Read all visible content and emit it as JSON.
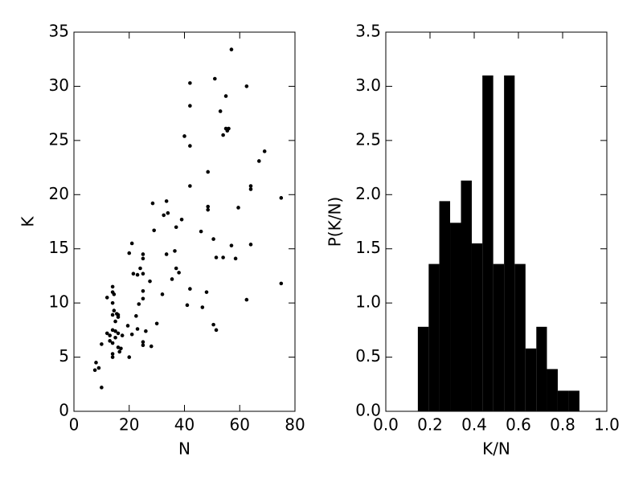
{
  "chart_data": [
    {
      "type": "scatter",
      "xlabel": "N",
      "ylabel": "K",
      "color": "#000000",
      "x": [
        8,
        7.6,
        9,
        10,
        10,
        12,
        12,
        13,
        13,
        14,
        14,
        14,
        14,
        14,
        14,
        14,
        14,
        14.5,
        14.5,
        15,
        15,
        15,
        15.5,
        16,
        16,
        16,
        16.5,
        17,
        16,
        17.5,
        19.5,
        20,
        20,
        21,
        21.5,
        21,
        22.5,
        23,
        23,
        24,
        23.5,
        25,
        25,
        25,
        25,
        25,
        25,
        25,
        26,
        27.5,
        28,
        28.5,
        29,
        30,
        32,
        32.5,
        33.5,
        34,
        33.5,
        35.5,
        36.5,
        37,
        37,
        38,
        39,
        40,
        41,
        42,
        42,
        42,
        42,
        42,
        46,
        46.5,
        48,
        48.5,
        48.5,
        48.5,
        51,
        50.5,
        50.5,
        51.5,
        51.5,
        53,
        54,
        54,
        55,
        55,
        55.5,
        56,
        57,
        57,
        58.5,
        59.5,
        62.5,
        62.5,
        64,
        64,
        64,
        67,
        69,
        75,
        75
      ],
      "y": [
        4.5,
        3.8,
        4,
        2.2,
        6.2,
        10.5,
        7.2,
        7,
        6.5,
        11.5,
        11,
        10,
        8.9,
        7.5,
        6.3,
        5.3,
        5,
        10.8,
        9.3,
        8.3,
        7.4,
        6.8,
        9,
        8.7,
        7.2,
        5.9,
        5.5,
        5.8,
        8.9,
        7,
        7.9,
        5,
        14.6,
        15.5,
        12.7,
        7.1,
        8.8,
        7.6,
        12.6,
        13.2,
        9.9,
        14.5,
        14.1,
        10.4,
        11.1,
        12.7,
        6.4,
        6.1,
        7.4,
        12,
        6,
        19.2,
        16.7,
        8.1,
        10.8,
        18.1,
        19.4,
        18.3,
        14.5,
        12.2,
        14.8,
        17,
        13.2,
        12.8,
        17.7,
        25.4,
        9.8,
        30.3,
        28.2,
        24.5,
        20.8,
        11.3,
        16.6,
        9.6,
        11,
        22.1,
        18.9,
        18.6,
        30.7,
        15.9,
        8,
        7.5,
        14.2,
        27.7,
        25.5,
        14.2,
        29.1,
        26.1,
        25.9,
        26.1,
        33.4,
        15.3,
        14.1,
        18.8,
        30,
        10.3,
        20.8,
        20.5,
        15.4,
        23.1,
        24,
        19.7,
        11.8
      ],
      "xlim": [
        0,
        80
      ],
      "xticks": [
        0,
        20,
        40,
        60,
        80
      ],
      "ylim": [
        0,
        35
      ],
      "yticks": [
        0,
        5,
        10,
        15,
        20,
        25,
        30,
        35
      ]
    },
    {
      "type": "histogram",
      "xlabel": "K/N",
      "ylabel": "P(K/N)",
      "color": "#000000",
      "bins": [
        0.145,
        0.194,
        0.242,
        0.291,
        0.34,
        0.389,
        0.437,
        0.486,
        0.535,
        0.583,
        0.632,
        0.681,
        0.729,
        0.778,
        0.827,
        0.876
      ],
      "values": [
        0.78,
        1.36,
        1.94,
        1.74,
        2.13,
        1.55,
        3.1,
        1.36,
        3.1,
        1.36,
        0.58,
        0.78,
        0.39,
        0.19,
        0.19
      ],
      "xlim": [
        0,
        1
      ],
      "xticks": [
        {
          "value": 0,
          "label": "0.0"
        },
        0.2,
        0.4,
        0.6,
        0.8,
        {
          "value": 1,
          "label": "1.0"
        }
      ],
      "ylim": [
        0,
        3.5
      ],
      "yticks": [
        {
          "value": 0,
          "label": "0.0"
        },
        0.5,
        {
          "value": 1,
          "label": "1.0"
        },
        1.5,
        {
          "value": 2,
          "label": "2.0"
        },
        2.5,
        {
          "value": 3,
          "label": "3.0"
        },
        3.5
      ]
    }
  ]
}
